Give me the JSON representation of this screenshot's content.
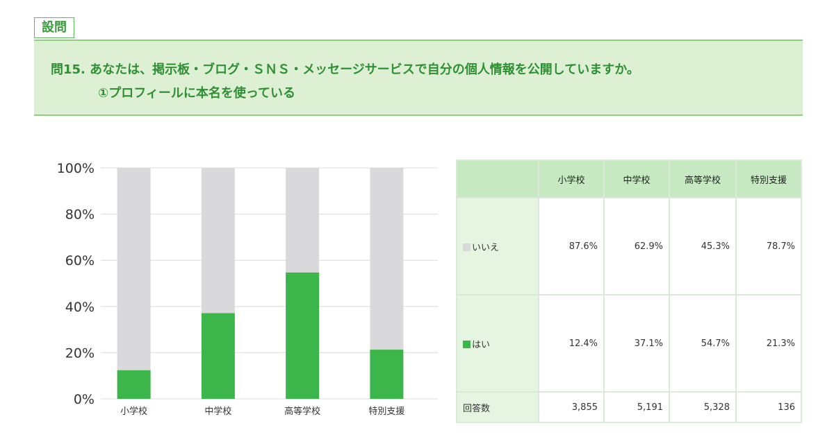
{
  "section_tag": "設問",
  "question": {
    "line1": "問15.  あなたは、掲示板・ブログ・ＳＮＳ・メッセージサービスで自分の個人情報を公開していますか。",
    "line2": "①プロフィールに本名を使っている"
  },
  "colors": {
    "no": "#d9d9db",
    "yes": "#3cb54a",
    "accent": "#2f8f33"
  },
  "chart_data": {
    "type": "bar",
    "stacked": true,
    "categories": [
      "小学校",
      "中学校",
      "高等学校",
      "特別支援"
    ],
    "series": [
      {
        "name": "はい",
        "values": [
          12.4,
          37.1,
          54.7,
          21.3
        ]
      },
      {
        "name": "いいえ",
        "values": [
          87.6,
          62.9,
          45.3,
          78.7
        ]
      }
    ],
    "ylim": [
      0,
      100
    ],
    "yticks": [
      "0%",
      "20%",
      "40%",
      "60%",
      "80%",
      "100%"
    ],
    "grid": true
  },
  "table": {
    "columns": [
      "小学校",
      "中学校",
      "高等学校",
      "特別支援"
    ],
    "rows": [
      {
        "label": "いいえ",
        "values": [
          "87.6%",
          "62.9%",
          "45.3%",
          "78.7%"
        ]
      },
      {
        "label": "はい",
        "values": [
          "12.4%",
          "37.1%",
          "54.7%",
          "21.3%"
        ]
      }
    ],
    "count_label": "回答数",
    "counts": [
      "3,855",
      "5,191",
      "5,328",
      "136"
    ]
  }
}
